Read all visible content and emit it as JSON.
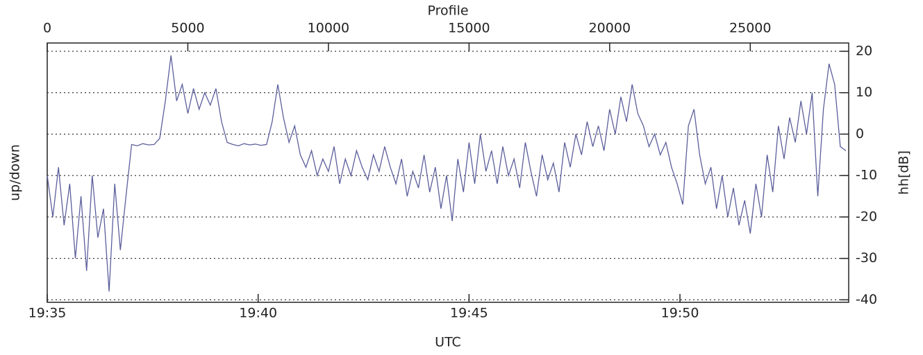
{
  "chart_data": {
    "type": "line",
    "x2label": "Profile",
    "xlabel": "UTC",
    "ylabel": "up/down",
    "y2label": "hh[dB]",
    "xlim": [
      0,
      28500
    ],
    "xticks": [
      {
        "value": 0,
        "label": "19:35"
      },
      {
        "value": 7500,
        "label": "19:40"
      },
      {
        "value": 15000,
        "label": "19:45"
      },
      {
        "value": 22500,
        "label": "19:50"
      }
    ],
    "x2ticks": [
      0,
      5000,
      10000,
      15000,
      20000,
      25000
    ],
    "y2lim": [
      -40.6,
      22
    ],
    "y2ticks": [
      -40,
      -30,
      -20,
      -10,
      0,
      10,
      20
    ],
    "grid": true,
    "x": [
      0,
      200,
      400,
      600,
      800,
      1000,
      1200,
      1400,
      1600,
      1800,
      2000,
      2200,
      2400,
      2600,
      2800,
      3000,
      3200,
      3400,
      3600,
      3800,
      4000,
      4200,
      4400,
      4600,
      4800,
      5000,
      5200,
      5400,
      5600,
      5800,
      6000,
      6200,
      6400,
      6600,
      6800,
      7000,
      7200,
      7400,
      7600,
      7800,
      8000,
      8200,
      8400,
      8600,
      8800,
      9000,
      9200,
      9400,
      9600,
      9800,
      10000,
      10200,
      10400,
      10600,
      10800,
      11000,
      11200,
      11400,
      11600,
      11800,
      12000,
      12200,
      12400,
      12600,
      12800,
      13000,
      13200,
      13400,
      13600,
      13800,
      14000,
      14200,
      14400,
      14600,
      14800,
      15000,
      15200,
      15400,
      15600,
      15800,
      16000,
      16200,
      16400,
      16600,
      16800,
      17000,
      17200,
      17400,
      17600,
      17800,
      18000,
      18200,
      18400,
      18600,
      18800,
      19000,
      19200,
      19400,
      19600,
      19800,
      20000,
      20200,
      20400,
      20600,
      20800,
      21000,
      21200,
      21400,
      21600,
      21800,
      22000,
      22200,
      22400,
      22600,
      22800,
      23000,
      23200,
      23400,
      23600,
      23800,
      24000,
      24200,
      24400,
      24600,
      24800,
      25000,
      25200,
      25400,
      25600,
      25800,
      26000,
      26200,
      26400,
      26600,
      26800,
      27000,
      27200,
      27400,
      27600,
      27800,
      28000,
      28200,
      28400
    ],
    "series": [
      {
        "color": "#5b5e9b",
        "axis": "y2",
        "values": [
          -10,
          -20,
          -8,
          -22,
          -12,
          -30,
          -15,
          -33,
          -10,
          -25,
          -18,
          -38,
          -12,
          -28,
          -15,
          -2.5,
          -2.8,
          -2.3,
          -2.6,
          -2.5,
          -1,
          8,
          19,
          8,
          12,
          5,
          11,
          6,
          10,
          7,
          11,
          3,
          -2,
          -2.5,
          -2.8,
          -2.3,
          -2.6,
          -2.4,
          -2.7,
          -2.5,
          3,
          12,
          4,
          -2,
          2,
          -5,
          -8,
          -4,
          -10,
          -6,
          -9,
          -3,
          -12,
          -6,
          -10,
          -4,
          -8,
          -11,
          -5,
          -9,
          -3,
          -8,
          -12,
          -6,
          -15,
          -9,
          -13,
          -5,
          -14,
          -8,
          -18,
          -10,
          -21,
          -6,
          -14,
          -2,
          -12,
          0,
          -9,
          -4,
          -12,
          -3,
          -10,
          -6,
          -13,
          -2,
          -9,
          -15,
          -5,
          -11,
          -7,
          -14,
          -2,
          -8,
          0,
          -5,
          3,
          -3,
          2,
          -4,
          6,
          0,
          9,
          3,
          12,
          5,
          2,
          -3,
          0,
          -5,
          -2,
          -8,
          -12,
          -17,
          2,
          6,
          -5,
          -12,
          -8,
          -18,
          -10,
          -20,
          -13,
          -22,
          -16,
          -24,
          -12,
          -20,
          -5,
          -14,
          2,
          -6,
          4,
          -2,
          8,
          0,
          10,
          -15,
          6,
          17,
          12,
          -3,
          -4
        ]
      }
    ]
  }
}
